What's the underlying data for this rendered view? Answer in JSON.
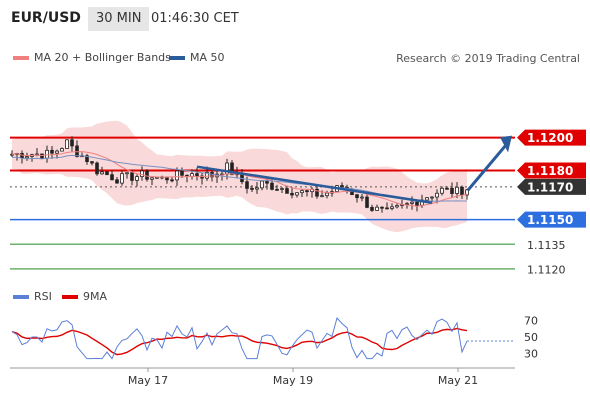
{
  "header": {
    "pair": "EUR/USD",
    "timeframe": "30 MIN",
    "time": "01:46:30 CET"
  },
  "legend_main": {
    "bb_label": "MA 20 + Bollinger Bands",
    "ma50_label": "MA 50",
    "bb_color": "#f08080",
    "ma50_color": "#2a5b9a"
  },
  "credit": "Research © 2019 Trading Central",
  "legend_rsi": {
    "rsi_label": "RSI",
    "ma9_label": "9MA",
    "rsi_color": "#5b7fd6",
    "ma9_color": "#e00000"
  },
  "chart_data": [
    {
      "type": "candlestick",
      "ylim": [
        1.1112,
        1.1226
      ],
      "levels": [
        {
          "label": "1.1200",
          "value": 1.12,
          "color": "#e00000"
        },
        {
          "label": "1.1180",
          "value": 1.118,
          "color": "#e00000"
        },
        {
          "label": "1.1170",
          "value": 1.117,
          "color": "#333333"
        },
        {
          "label": "1.1150",
          "value": 1.115,
          "color": "#2e6fe0"
        },
        {
          "label": "1.1135",
          "value": 1.1135,
          "color": "#6cb26c"
        },
        {
          "label": "1.1120",
          "value": 1.112,
          "color": "#6cb26c"
        }
      ],
      "x_ticks": [
        "May 17",
        "May 19",
        "May 21"
      ],
      "grid": false
    },
    {
      "type": "line",
      "series": [
        {
          "name": "RSI"
        },
        {
          "name": "9MA"
        }
      ],
      "ylim": [
        20,
        80
      ],
      "y_ticks": [
        "70",
        "50",
        "30"
      ]
    }
  ]
}
